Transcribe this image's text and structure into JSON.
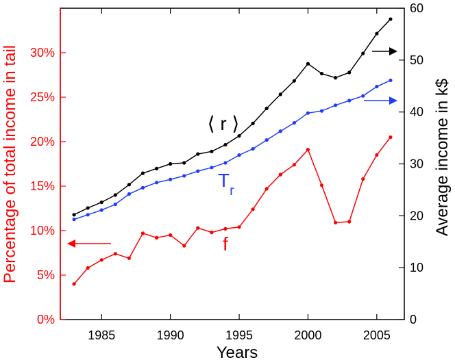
{
  "chart_data": {
    "type": "line",
    "xlabel": "Years",
    "ylabel_left": "Percentage of total income in tail",
    "ylabel_right": "Average income in k$",
    "xlim": [
      1982,
      2007
    ],
    "ylim_left": [
      0,
      35
    ],
    "ylim_right": [
      0,
      60
    ],
    "x_ticks": [
      1985,
      1990,
      1995,
      2000,
      2005
    ],
    "y_left_ticks": [
      0,
      5,
      10,
      15,
      20,
      25,
      30
    ],
    "y_left_tick_labels": [
      "0%",
      "5%",
      "10%",
      "15%",
      "20%",
      "25%",
      "30%"
    ],
    "y_right_ticks": [
      0,
      10,
      20,
      30,
      40,
      50,
      60
    ],
    "grid": false,
    "colors": {
      "left_axis": "#ff0000",
      "right_axis": "#000000",
      "frame": "#000000"
    },
    "x": [
      1983,
      1984,
      1985,
      1986,
      1987,
      1988,
      1989,
      1990,
      1991,
      1992,
      1993,
      1994,
      1995,
      1996,
      1997,
      1998,
      1999,
      2000,
      2001,
      2002,
      2003,
      2004,
      2005,
      2006
    ],
    "series": [
      {
        "name": "⟨ r ⟩",
        "axis": "right",
        "color": "#000000",
        "values": [
          20.2,
          21.5,
          22.6,
          24.0,
          26.0,
          28.2,
          29.1,
          30.0,
          30.2,
          31.9,
          32.4,
          33.7,
          35.4,
          37.8,
          40.7,
          43.4,
          46.0,
          49.3,
          47.4,
          46.6,
          47.6,
          51.3,
          55.1,
          57.9
        ]
      },
      {
        "name": "T_r",
        "axis": "right",
        "color": "#1e3cff",
        "values": [
          19.3,
          20.2,
          21.1,
          22.2,
          24.2,
          25.4,
          26.4,
          27.0,
          27.7,
          28.6,
          29.3,
          30.2,
          31.7,
          32.9,
          34.6,
          36.3,
          37.9,
          39.8,
          40.2,
          41.3,
          42.2,
          43.1,
          44.9,
          46.1
        ]
      },
      {
        "name": "f",
        "axis": "left",
        "color": "#ff0000",
        "values": [
          4.0,
          5.8,
          6.7,
          7.4,
          6.9,
          9.7,
          9.2,
          9.5,
          8.3,
          10.3,
          9.8,
          10.2,
          10.4,
          12.4,
          14.7,
          16.3,
          17.4,
          19.1,
          15.1,
          10.9,
          11.0,
          15.8,
          18.5,
          20.5
        ]
      }
    ]
  }
}
